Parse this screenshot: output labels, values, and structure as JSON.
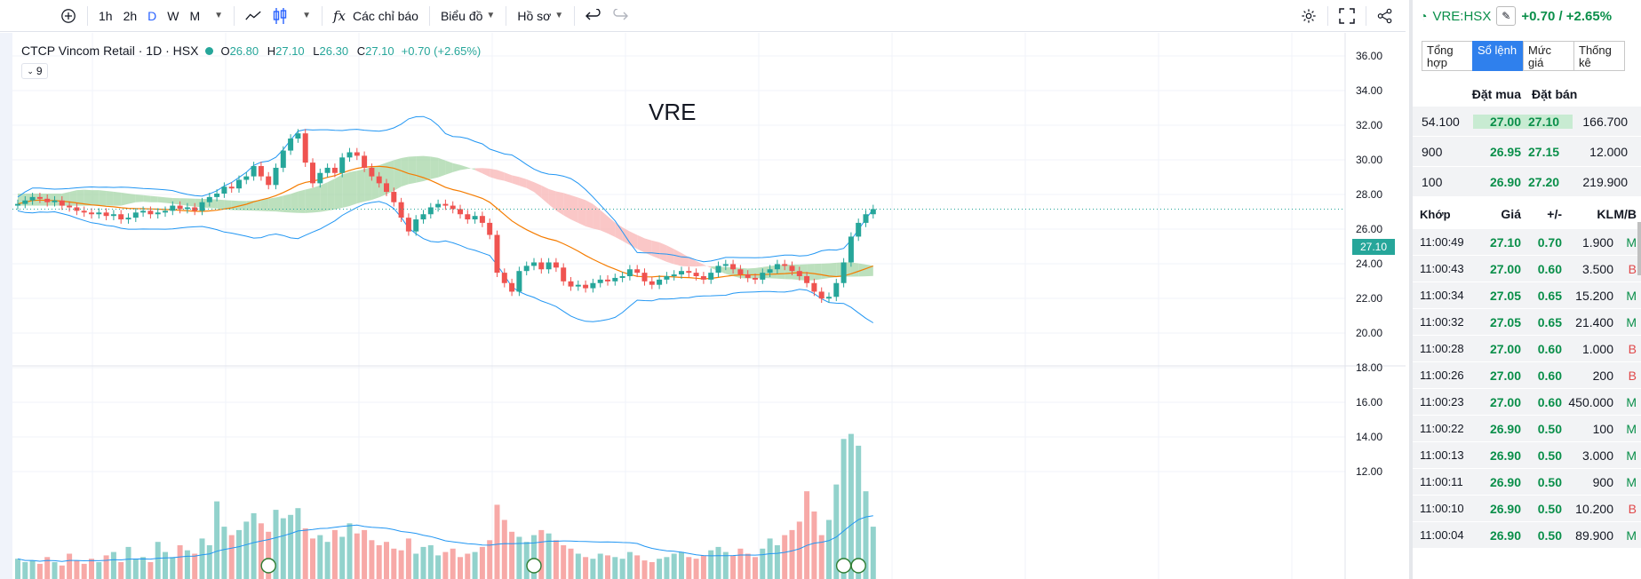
{
  "toolbar": {
    "add_icon": "plus-circle-icon",
    "intervals": [
      "1h",
      "2h",
      "D",
      "W",
      "M"
    ],
    "active_interval": "D",
    "indicators_label": "Các chỉ báo",
    "chart_label": "Biểu đồ",
    "profile_label": "Hồ sơ"
  },
  "legend": {
    "symbol": "CTCP Vincom Retail · 1D · HSX",
    "o_label": "O",
    "o": "26.80",
    "h_label": "H",
    "h": "27.10",
    "l_label": "L",
    "l": "26.30",
    "c_label": "C",
    "c": "27.10",
    "change": "+0.70 (+2.65%)",
    "collapse_count": "9"
  },
  "watermark": "VRE",
  "current_price_tag": "27.10",
  "price_axis": [
    "36.00",
    "34.00",
    "32.00",
    "30.00",
    "28.00",
    "26.00",
    "24.00",
    "22.00",
    "20.00",
    "18.00",
    "16.00",
    "14.00",
    "12.00"
  ],
  "colors": {
    "up": "#26a69a",
    "down": "#ef5350",
    "accent": "#2962ff",
    "green_text": "#0a8f4a",
    "red_text": "#e0484a"
  },
  "chart_data": {
    "type": "candlestick",
    "y_range": [
      20,
      36
    ],
    "closes": [
      27.4,
      27.6,
      27.8,
      27.7,
      27.5,
      27.6,
      27.3,
      27.2,
      27.0,
      26.9,
      26.8,
      26.9,
      26.7,
      26.8,
      26.5,
      26.6,
      26.9,
      27.0,
      26.8,
      26.9,
      27.0,
      27.3,
      27.1,
      27.2,
      27.0,
      27.5,
      27.8,
      28.0,
      28.4,
      28.3,
      28.8,
      29.0,
      29.6,
      29.0,
      28.5,
      29.5,
      30.5,
      31.2,
      31.5,
      29.8,
      28.6,
      29.2,
      29.5,
      29.2,
      30.1,
      30.4,
      30.2,
      29.5,
      29.0,
      28.6,
      28.1,
      27.5,
      26.6,
      25.8,
      26.5,
      26.8,
      27.2,
      27.4,
      27.3,
      27.1,
      26.8,
      26.5,
      26.7,
      26.3,
      25.6,
      23.4,
      22.8,
      22.3,
      23.5,
      23.8,
      24.0,
      23.6,
      24.0,
      23.7,
      22.9,
      22.6,
      22.7,
      22.5,
      22.8,
      23.0,
      22.9,
      23.1,
      23.2,
      23.6,
      23.4,
      22.9,
      22.7,
      23.0,
      23.2,
      23.3,
      23.5,
      23.4,
      23.2,
      23.0,
      23.4,
      23.8,
      23.9,
      23.6,
      23.3,
      23.1,
      23.0,
      23.4,
      23.6,
      23.9,
      23.8,
      23.5,
      23.2,
      22.8,
      22.3,
      21.9,
      22.0,
      22.8,
      24.0,
      25.5,
      26.3,
      26.8,
      27.1
    ],
    "volumes": [
      1.2,
      1.0,
      1.1,
      0.9,
      1.3,
      1.0,
      0.8,
      1.5,
      1.1,
      0.9,
      1.2,
      1.0,
      1.4,
      1.6,
      1.0,
      1.9,
      1.2,
      1.3,
      1.0,
      2.2,
      1.6,
      1.3,
      2.0,
      1.7,
      1.5,
      2.4,
      2.0,
      4.6,
      3.1,
      2.6,
      2.9,
      3.4,
      3.9,
      3.3,
      2.8,
      4.1,
      3.6,
      3.8,
      4.2,
      3.0,
      2.4,
      2.6,
      2.2,
      2.9,
      2.5,
      3.3,
      2.7,
      2.9,
      2.3,
      2.0,
      2.2,
      1.8,
      1.7,
      2.4,
      1.5,
      1.9,
      2.0,
      1.4,
      1.6,
      1.8,
      1.3,
      1.5,
      1.6,
      1.9,
      2.3,
      4.4,
      3.5,
      2.8,
      2.5,
      2.2,
      2.6,
      2.9,
      2.7,
      2.3,
      2.0,
      1.8,
      1.5,
      1.3,
      1.2,
      1.5,
      1.4,
      1.3,
      1.2,
      1.6,
      1.4,
      1.1,
      1.0,
      1.2,
      1.3,
      1.5,
      1.6,
      1.3,
      1.2,
      1.4,
      1.7,
      1.9,
      1.6,
      1.4,
      1.8,
      1.5,
      1.3,
      1.8,
      2.4,
      2.0,
      2.6,
      2.9,
      3.4,
      5.2,
      4.0,
      2.6,
      3.5,
      5.6,
      8.3,
      8.6,
      7.9,
      5.2,
      3.1
    ]
  },
  "panel": {
    "symbol": "VRE:HSX",
    "edit_icon": "pencil-icon",
    "change": "+0.70 / +2.65%",
    "tabs": [
      "Tổng hợp",
      "Sổ lệnh",
      "Mức giá",
      "Thống kê"
    ],
    "active_tab": 1,
    "orderbook_headers": {
      "bid": "Đặt mua",
      "ask": "Đặt bán"
    },
    "orderbook": [
      {
        "bid_qty": "54.100",
        "bid_price": "27.00",
        "ask_price": "27.10",
        "ask_qty": "166.700"
      },
      {
        "bid_qty": "900",
        "bid_price": "26.95",
        "ask_price": "27.15",
        "ask_qty": "12.000"
      },
      {
        "bid_qty": "100",
        "bid_price": "26.90",
        "ask_price": "27.20",
        "ask_qty": "219.900"
      }
    ],
    "trade_headers": [
      "Khớp",
      "Giá",
      "+/-",
      "KL",
      "M/B"
    ],
    "trades": [
      {
        "time": "11:00:49",
        "price": "27.10",
        "chg": "0.70",
        "vol": "1.900",
        "side": "M"
      },
      {
        "time": "11:00:43",
        "price": "27.00",
        "chg": "0.60",
        "vol": "3.500",
        "side": "B"
      },
      {
        "time": "11:00:34",
        "price": "27.05",
        "chg": "0.65",
        "vol": "15.200",
        "side": "M"
      },
      {
        "time": "11:00:32",
        "price": "27.05",
        "chg": "0.65",
        "vol": "21.400",
        "side": "M"
      },
      {
        "time": "11:00:28",
        "price": "27.00",
        "chg": "0.60",
        "vol": "1.000",
        "side": "B"
      },
      {
        "time": "11:00:26",
        "price": "27.00",
        "chg": "0.60",
        "vol": "200",
        "side": "B"
      },
      {
        "time": "11:00:23",
        "price": "27.00",
        "chg": "0.60",
        "vol": "450.000",
        "side": "M"
      },
      {
        "time": "11:00:22",
        "price": "26.90",
        "chg": "0.50",
        "vol": "100",
        "side": "M"
      },
      {
        "time": "11:00:13",
        "price": "26.90",
        "chg": "0.50",
        "vol": "3.000",
        "side": "M"
      },
      {
        "time": "11:00:11",
        "price": "26.90",
        "chg": "0.50",
        "vol": "900",
        "side": "M"
      },
      {
        "time": "11:00:10",
        "price": "26.90",
        "chg": "0.50",
        "vol": "10.200",
        "side": "B"
      },
      {
        "time": "11:00:04",
        "price": "26.90",
        "chg": "0.50",
        "vol": "89.900",
        "side": "M"
      }
    ]
  }
}
